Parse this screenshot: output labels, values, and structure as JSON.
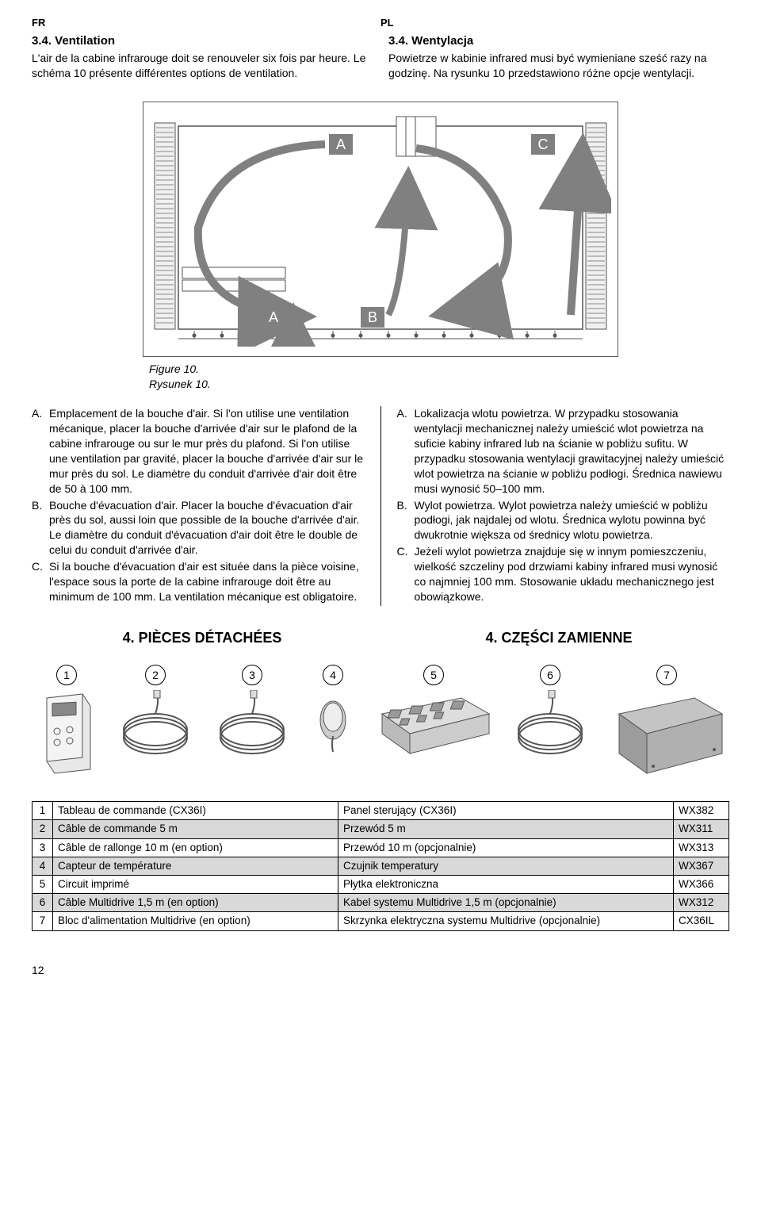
{
  "langs": {
    "left": "FR",
    "right": "PL"
  },
  "fr": {
    "heading": "3.4. Ventilation",
    "body": "L'air de la cabine infrarouge doit se renouveler six fois par heure. Le schéma 10 présente différentes options de ventilation.",
    "legend": {
      "A": "Emplacement de la bouche d'air. Si l'on utilise une ventilation mécanique, placer la bouche d'arrivée d'air sur le plafond de la cabine infrarouge ou sur le mur près du plafond. Si l'on utilise une ventilation par gravité, placer la bouche d'arrivée d'air sur le mur près du sol. Le diamètre du conduit d'arrivée d'air doit être de 50 à 100 mm.",
      "B": "Bouche d'évacuation d'air. Placer la bouche d'évacuation d'air près du sol, aussi loin que possible de la bouche d'arrivée d'air. Le diamètre du conduit d'évacuation d'air doit être le double de celui du conduit d'arrivée d'air.",
      "C": "Si la bouche d'évacuation d'air est située dans la pièce voisine, l'espace sous la porte de la cabine infrarouge doit être au minimum de 100 mm. La ventilation mécanique est obligatoire."
    },
    "section4": "4. PIÈCES DÉTACHÉES"
  },
  "pl": {
    "heading": "3.4. Wentylacja",
    "body": "Powietrze w kabinie infrared musi być wymieniane sześć razy na godzinę. Na rysunku 10 przedstawiono różne opcje wentylacji.",
    "legend": {
      "A": "Lokalizacja wlotu powietrza. W przypadku stosowania wentylacji mechanicznej należy umieścić wlot powietrza na suficie kabiny infrared lub na ścianie w pobliżu sufitu. W przypadku stosowania wentylacji grawitacyjnej należy umieścić wlot powietrza na ścianie w pobliżu podłogi. Średnica nawiewu musi wynosić 50–100 mm.",
      "B": "Wylot powietrza. Wylot powietrza należy umieścić w pobliżu podłogi, jak najdalej od wlotu. Średnica wylotu powinna być dwukrotnie większa od średnicy wlotu powietrza.",
      "C": "Jeżeli wylot powietrza znajduje się w innym pomieszczeniu, wielkość szczeliny pod drzwiami kabiny infrared musi wynosić co najmniej 100 mm. Stosowanie układu mechanicznego jest obowiązkowe."
    },
    "section4": "4. CZĘŚCI ZAMIENNE"
  },
  "figure": {
    "caption_fr": "Figure 10.",
    "caption_pl": "Rysunek 10.",
    "labels": {
      "A1": "A",
      "A2": "A",
      "B": "B",
      "C": "C"
    },
    "colors": {
      "stroke": "#6d6d6d",
      "fill": "#9a9a9a",
      "label_bg": "#808080",
      "label_text": "#ffffff"
    }
  },
  "parts": {
    "numbers": [
      "1",
      "2",
      "3",
      "4",
      "5",
      "6",
      "7"
    ],
    "rows": [
      {
        "n": "1",
        "fr": "Tableau de commande (CX36I)",
        "pl": "Panel sterujący (CX36I)",
        "code": "WX382",
        "shade": false
      },
      {
        "n": "2",
        "fr": "Câble de commande 5 m",
        "pl": "Przewód 5 m",
        "code": "WX311",
        "shade": true
      },
      {
        "n": "3",
        "fr": "Câble de rallonge 10 m (en option)",
        "pl": "Przewód 10 m (opcjonalnie)",
        "code": "WX313",
        "shade": false
      },
      {
        "n": "4",
        "fr": "Capteur de température",
        "pl": "Czujnik temperatury",
        "code": "WX367",
        "shade": true
      },
      {
        "n": "5",
        "fr": "Circuit imprimé",
        "pl": "Płytka elektroniczna",
        "code": "WX366",
        "shade": false
      },
      {
        "n": "6",
        "fr": "Câble Multidrive 1,5 m (en option)",
        "pl": "Kabel systemu Multidrive 1,5 m (opcjonalnie)",
        "code": "WX312",
        "shade": true
      },
      {
        "n": "7",
        "fr": "Bloc d'alimentation Multidrive (en option)",
        "pl": "Skrzynka elektryczna systemu Multidrive (opcjonalnie)",
        "code": "CX36IL",
        "shade": false
      }
    ]
  },
  "page_number": "12"
}
